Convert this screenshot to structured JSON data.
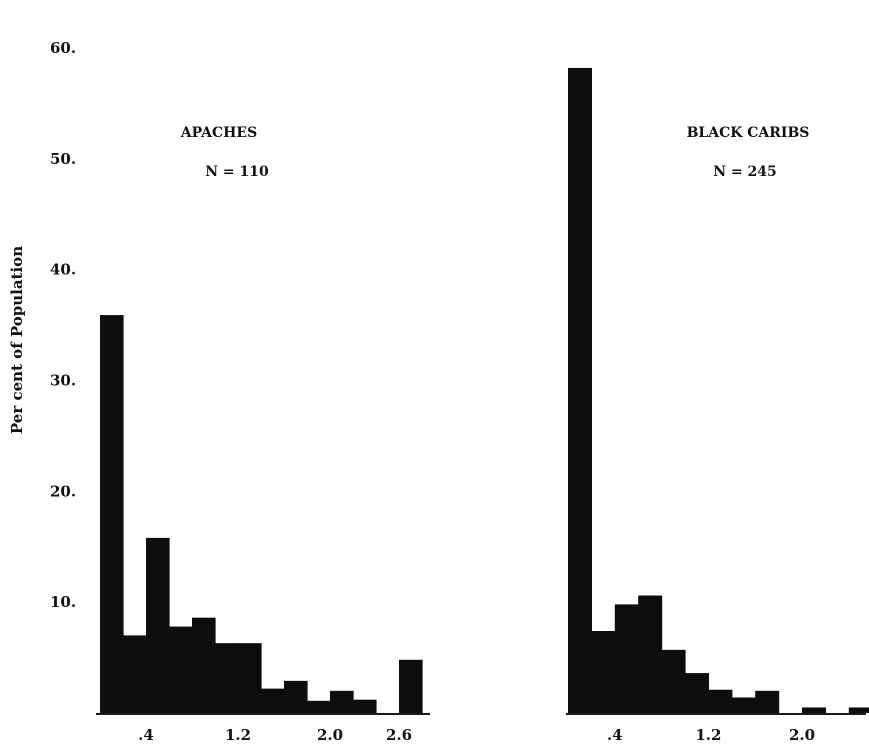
{
  "chart_data": {
    "type": "bar",
    "ylabel": "Per cent of Population",
    "ylim": [
      0,
      60
    ],
    "yticks": [
      {
        "value": 10,
        "label": "10."
      },
      {
        "value": 20,
        "label": "20."
      },
      {
        "value": 30,
        "label": "30."
      },
      {
        "value": 40,
        "label": "40."
      },
      {
        "value": 50,
        "label": "50."
      },
      {
        "value": 60,
        "label": "60."
      }
    ],
    "grid": false,
    "panels": [
      {
        "name": "APACHES",
        "n_label": "N = 110",
        "xlim": [
          0,
          2.8
        ],
        "bin_width": 0.2,
        "xticks": [
          {
            "value": 0.4,
            "label": ".4"
          },
          {
            "value": 1.2,
            "label": "1.2"
          },
          {
            "value": 2.0,
            "label": "2.0"
          },
          {
            "value": 2.6,
            "label": "2.6"
          }
        ],
        "bars": [
          {
            "x0": 0.0,
            "x1": 0.2,
            "value": 35.9
          },
          {
            "x0": 0.2,
            "x1": 0.4,
            "value": 7.0
          },
          {
            "x0": 0.4,
            "x1": 0.6,
            "value": 15.8
          },
          {
            "x0": 0.6,
            "x1": 0.8,
            "value": 7.8
          },
          {
            "x0": 0.8,
            "x1": 1.0,
            "value": 8.6
          },
          {
            "x0": 1.0,
            "x1": 1.2,
            "value": 6.3
          },
          {
            "x0": 1.2,
            "x1": 1.4,
            "value": 6.3
          },
          {
            "x0": 1.4,
            "x1": 1.6,
            "value": 2.2
          },
          {
            "x0": 1.6,
            "x1": 1.8,
            "value": 2.9
          },
          {
            "x0": 1.8,
            "x1": 2.0,
            "value": 1.1
          },
          {
            "x0": 2.0,
            "x1": 2.2,
            "value": 2.0
          },
          {
            "x0": 2.2,
            "x1": 2.4,
            "value": 1.2
          },
          {
            "x0": 2.6,
            "x1": 2.8,
            "value": 4.8
          }
        ]
      },
      {
        "name": "BLACK CARIBS",
        "n_label": "N = 245",
        "xlim": [
          0,
          2.8
        ],
        "bin_width": 0.2,
        "xticks": [
          {
            "value": 0.4,
            "label": ".4"
          },
          {
            "value": 1.2,
            "label": "1.2"
          },
          {
            "value": 2.0,
            "label": "2.0"
          }
        ],
        "bars": [
          {
            "x0": 0.0,
            "x1": 0.2,
            "value": 58.2
          },
          {
            "x0": 0.2,
            "x1": 0.4,
            "value": 7.4
          },
          {
            "x0": 0.4,
            "x1": 0.6,
            "value": 9.8
          },
          {
            "x0": 0.6,
            "x1": 0.8,
            "value": 10.6
          },
          {
            "x0": 0.8,
            "x1": 1.0,
            "value": 5.7
          },
          {
            "x0": 1.0,
            "x1": 1.2,
            "value": 3.6
          },
          {
            "x0": 1.2,
            "x1": 1.4,
            "value": 2.1
          },
          {
            "x0": 1.4,
            "x1": 1.6,
            "value": 1.4
          },
          {
            "x0": 1.6,
            "x1": 1.8,
            "value": 2.0
          },
          {
            "x0": 2.0,
            "x1": 2.2,
            "value": 0.5
          },
          {
            "x0": 2.4,
            "x1": 2.6,
            "value": 0.5
          }
        ]
      }
    ]
  }
}
